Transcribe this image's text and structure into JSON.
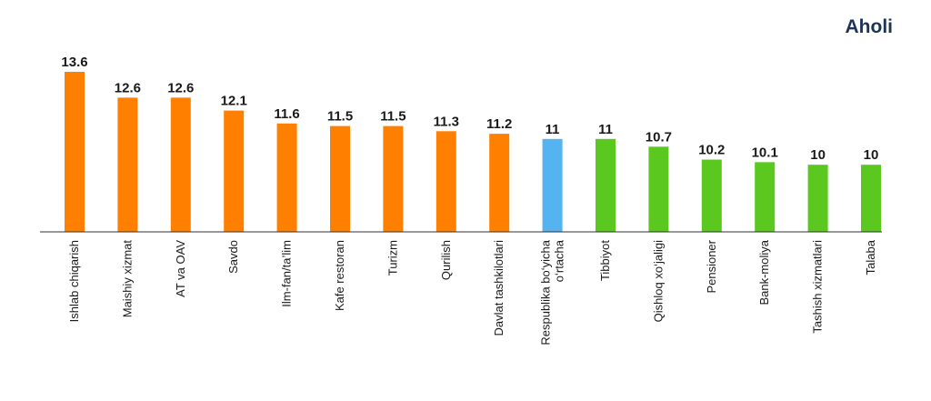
{
  "brand": "Aholi",
  "colors": {
    "sector": "#ff8000",
    "average": "#55b4f0",
    "group": "#5ac81e",
    "axis": "#333333"
  },
  "chart_data": {
    "type": "bar",
    "title": "",
    "xlabel": "",
    "ylabel": "",
    "ylim": [
      0,
      14
    ],
    "grid": false,
    "legend": "none",
    "value_labels": true,
    "categories": [
      "Ishlab chiqarish",
      "Maishiy xizmat",
      "AT va OAV",
      "Savdo",
      "Ilm-fan/ta’lim",
      "Kafe restoran",
      "Turizm",
      "Qurilish",
      "Davlat tashkilotlari",
      "Respublika bo‘yicha o‘rtacha",
      "Tibbiyot",
      "Qishloq xo‘jaligi",
      "Pensioner",
      "Bank-moliya",
      "Tashish xizmatlari",
      "Talaba"
    ],
    "values": [
      13.6,
      12.6,
      12.6,
      12.1,
      11.6,
      11.5,
      11.5,
      11.3,
      11.2,
      11,
      11,
      10.7,
      10.2,
      10.1,
      10,
      10
    ],
    "value_labels_text": [
      "13.6",
      "12.6",
      "12.6",
      "12.1",
      "11.6",
      "11.5",
      "11.5",
      "11.3",
      "11.2",
      "11",
      "11",
      "10.7",
      "10.2",
      "10.1",
      "10",
      "10"
    ],
    "bar_colors": [
      "#ff8000",
      "#ff8000",
      "#ff8000",
      "#ff8000",
      "#ff8000",
      "#ff8000",
      "#ff8000",
      "#ff8000",
      "#ff8000",
      "#55b4f0",
      "#5ac81e",
      "#5ac81e",
      "#5ac81e",
      "#5ac81e",
      "#5ac81e",
      "#5ac81e"
    ]
  }
}
